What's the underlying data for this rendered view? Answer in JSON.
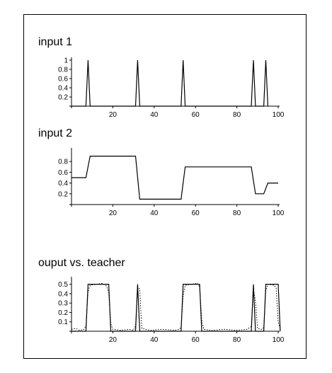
{
  "chart_data": [
    {
      "type": "line",
      "title": "input 1",
      "xlim": [
        0,
        100
      ],
      "ylim": [
        0,
        1
      ],
      "x_ticks": [
        20,
        40,
        60,
        80,
        100
      ],
      "x_tick_labels": [
        "20",
        "40",
        "60",
        "80",
        "100"
      ],
      "y_ticks": [
        0.2,
        0.4,
        0.6,
        0.8,
        1
      ],
      "y_tick_labels": [
        "0.2",
        "0.4",
        "0.6",
        "0.8",
        "1"
      ],
      "series": [
        {
          "name": "input 1",
          "x": [
            0,
            7,
            8,
            9,
            31,
            32,
            33,
            53,
            54,
            55,
            87,
            88,
            89,
            93,
            94,
            95
          ],
          "y": [
            0,
            0,
            1,
            0,
            0,
            1,
            0,
            0,
            1,
            0,
            0,
            1,
            0,
            0,
            1,
            0
          ]
        }
      ]
    },
    {
      "type": "line",
      "title": "input 2",
      "xlim": [
        0,
        100
      ],
      "ylim": [
        0,
        1
      ],
      "x_ticks": [
        20,
        40,
        60,
        80,
        100
      ],
      "x_tick_labels": [
        "20",
        "40",
        "60",
        "80",
        "100"
      ],
      "y_ticks": [
        0.2,
        0.4,
        0.6,
        0.8
      ],
      "y_tick_labels": [
        "0.2",
        "0.4",
        "0.6",
        "0.8"
      ],
      "series": [
        {
          "name": "input 2",
          "x": [
            0,
            7,
            9,
            31,
            33,
            53,
            55,
            87,
            89,
            93,
            95,
            100
          ],
          "y": [
            0.5,
            0.5,
            0.9,
            0.9,
            0.1,
            0.1,
            0.7,
            0.7,
            0.2,
            0.2,
            0.4,
            0.4
          ]
        }
      ]
    },
    {
      "type": "line",
      "title": "ouput vs. teacher",
      "xlim": [
        0,
        100
      ],
      "ylim": [
        0,
        0.55
      ],
      "x_ticks": [
        20,
        40,
        60,
        80,
        100
      ],
      "x_tick_labels": [
        "20",
        "40",
        "60",
        "80",
        "100"
      ],
      "y_ticks": [
        0.1,
        0.2,
        0.3,
        0.4,
        0.5
      ],
      "y_tick_labels": [
        "0.1",
        "0.2",
        "0.3",
        "0.4",
        "0.5"
      ],
      "series": [
        {
          "name": "teacher",
          "style": "solid",
          "x": [
            0,
            7,
            8,
            18,
            19,
            31,
            32,
            33,
            53,
            54,
            62,
            63,
            87,
            88,
            89,
            93,
            94,
            100,
            101
          ],
          "y": [
            0,
            0,
            0.5,
            0.5,
            0,
            0,
            0.5,
            0,
            0,
            0.5,
            0.5,
            0,
            0,
            0.5,
            0,
            0,
            0.5,
            0.5,
            0
          ]
        },
        {
          "name": "output",
          "style": "dotted",
          "x": [
            0,
            2,
            4,
            6,
            7,
            8,
            9,
            12,
            15,
            17,
            18,
            19,
            20,
            24,
            28,
            30,
            31,
            32,
            33,
            34,
            38,
            44,
            50,
            52,
            53,
            54,
            55,
            58,
            61,
            62,
            63,
            64,
            68,
            74,
            80,
            85,
            87,
            88,
            89,
            90,
            92,
            93,
            94,
            95,
            98,
            99,
            100,
            101
          ],
          "y": [
            0.02,
            0.03,
            0.01,
            0.02,
            0.06,
            0.42,
            0.49,
            0.5,
            0.51,
            0.48,
            0.41,
            0.08,
            0.02,
            0.01,
            0.02,
            0.01,
            0.06,
            0.47,
            0.45,
            0.03,
            0.01,
            0.02,
            0.01,
            0.02,
            0.04,
            0.38,
            0.49,
            0.5,
            0.51,
            0.47,
            0.12,
            0.02,
            0.01,
            0.02,
            0.01,
            0.02,
            0.05,
            0.45,
            0.32,
            0.03,
            0.02,
            0.04,
            0.43,
            0.5,
            0.49,
            0.46,
            0.1,
            0.02
          ]
        }
      ]
    }
  ]
}
